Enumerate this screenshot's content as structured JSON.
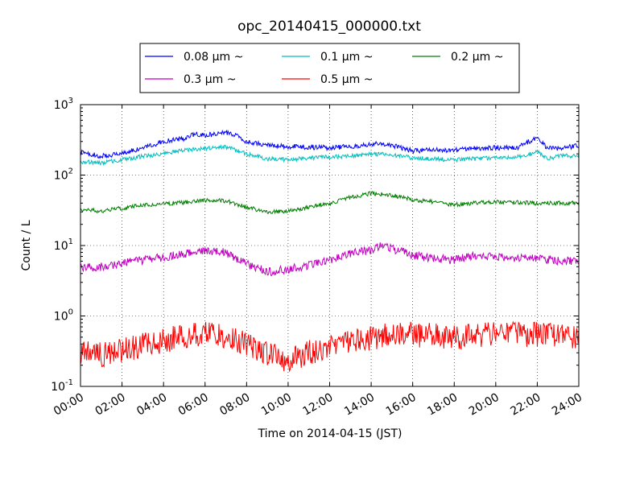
{
  "chart_data": {
    "type": "line",
    "title": "opc_20140415_000000.txt",
    "xlabel": "Time on 2014-04-15 (JST)",
    "ylabel": "Count / L",
    "y_scale": "log",
    "ylim": [
      0.1,
      1000
    ],
    "xlim": [
      "00:00",
      "24:00"
    ],
    "x_tick_labels": [
      "00:00",
      "02:00",
      "04:00",
      "06:00",
      "08:00",
      "10:00",
      "12:00",
      "14:00",
      "16:00",
      "18:00",
      "20:00",
      "22:00",
      "24:00"
    ],
    "y_tick_labels": [
      {
        "base": "10",
        "exp": "-1"
      },
      {
        "base": "10",
        "exp": "0"
      },
      {
        "base": "10",
        "exp": "1"
      },
      {
        "base": "10",
        "exp": "2"
      },
      {
        "base": "10",
        "exp": "3"
      }
    ],
    "grid": true,
    "grid_style": "dotted",
    "legend_position": "top, above plot",
    "series": [
      {
        "name": "0.08 μm ~",
        "color": "#0000ff",
        "x": [
          "00:00",
          "01:00",
          "02:00",
          "03:00",
          "04:00",
          "05:00",
          "05:30",
          "06:00",
          "07:00",
          "07:30",
          "08:00",
          "09:00",
          "10:00",
          "11:00",
          "12:00",
          "13:00",
          "14:00",
          "14:30",
          "15:00",
          "16:00",
          "17:00",
          "18:00",
          "19:00",
          "20:00",
          "21:00",
          "21:30",
          "22:00",
          "22:30",
          "23:00",
          "24:00"
        ],
        "y": [
          210,
          185,
          205,
          240,
          300,
          330,
          380,
          365,
          400,
          360,
          300,
          265,
          255,
          250,
          245,
          255,
          275,
          280,
          265,
          220,
          230,
          225,
          240,
          245,
          240,
          290,
          340,
          240,
          240,
          260
        ],
        "noise": 0.035
      },
      {
        "name": "0.1 μm ~",
        "color": "#00bfbf",
        "x": [
          "00:00",
          "01:00",
          "02:00",
          "03:00",
          "04:00",
          "05:00",
          "06:00",
          "07:00",
          "08:00",
          "09:00",
          "10:00",
          "11:00",
          "12:00",
          "13:00",
          "14:00",
          "15:00",
          "16:00",
          "17:00",
          "18:00",
          "19:00",
          "20:00",
          "21:00",
          "21:30",
          "22:00",
          "22:30",
          "23:00",
          "24:00"
        ],
        "y": [
          155,
          150,
          165,
          185,
          200,
          225,
          240,
          250,
          200,
          170,
          165,
          175,
          180,
          185,
          200,
          195,
          175,
          170,
          165,
          170,
          175,
          180,
          190,
          215,
          170,
          185,
          190
        ],
        "noise": 0.03
      },
      {
        "name": "0.2 μm ~",
        "color": "#008000",
        "x": [
          "00:00",
          "01:00",
          "02:00",
          "03:00",
          "04:00",
          "05:00",
          "06:00",
          "07:00",
          "08:00",
          "09:00",
          "10:00",
          "11:00",
          "12:00",
          "13:00",
          "14:00",
          "15:00",
          "16:00",
          "17:00",
          "18:00",
          "19:00",
          "20:00",
          "21:00",
          "22:00",
          "23:00",
          "24:00"
        ],
        "y": [
          32,
          31,
          34,
          37,
          39,
          41,
          44,
          43,
          35,
          30,
          31,
          35,
          40,
          48,
          55,
          52,
          45,
          41,
          38,
          40,
          42,
          41,
          40,
          40,
          40
        ],
        "noise": 0.03
      },
      {
        "name": "0.3 μm ~",
        "color": "#bf00bf",
        "x": [
          "00:00",
          "01:00",
          "02:00",
          "03:00",
          "04:00",
          "05:00",
          "06:00",
          "07:00",
          "08:00",
          "09:00",
          "10:00",
          "11:00",
          "12:00",
          "13:00",
          "14:00",
          "14:30",
          "15:00",
          "16:00",
          "17:00",
          "18:00",
          "19:00",
          "20:00",
          "21:00",
          "22:00",
          "23:00",
          "24:00"
        ],
        "y": [
          4.8,
          5.0,
          5.6,
          6.2,
          6.8,
          7.6,
          8.2,
          8.0,
          5.5,
          4.2,
          4.6,
          5.2,
          6.2,
          7.8,
          8.5,
          10.2,
          9.0,
          7.2,
          6.6,
          6.2,
          7.2,
          6.9,
          6.7,
          6.4,
          6.1,
          6.0
        ],
        "noise": 0.06
      },
      {
        "name": "0.5 μm ~",
        "color": "#ff0000",
        "x": [
          "00:00",
          "01:00",
          "02:00",
          "03:00",
          "04:00",
          "05:00",
          "06:00",
          "07:00",
          "08:00",
          "09:00",
          "10:00",
          "11:00",
          "12:00",
          "13:00",
          "14:00",
          "15:00",
          "16:00",
          "17:00",
          "18:00",
          "19:00",
          "20:00",
          "21:00",
          "22:00",
          "23:00",
          "24:00"
        ],
        "y": [
          0.3,
          0.28,
          0.33,
          0.38,
          0.44,
          0.52,
          0.55,
          0.5,
          0.4,
          0.28,
          0.24,
          0.3,
          0.35,
          0.45,
          0.48,
          0.55,
          0.55,
          0.52,
          0.5,
          0.52,
          0.55,
          0.55,
          0.55,
          0.52,
          0.5
        ],
        "noise": 0.18
      }
    ]
  }
}
